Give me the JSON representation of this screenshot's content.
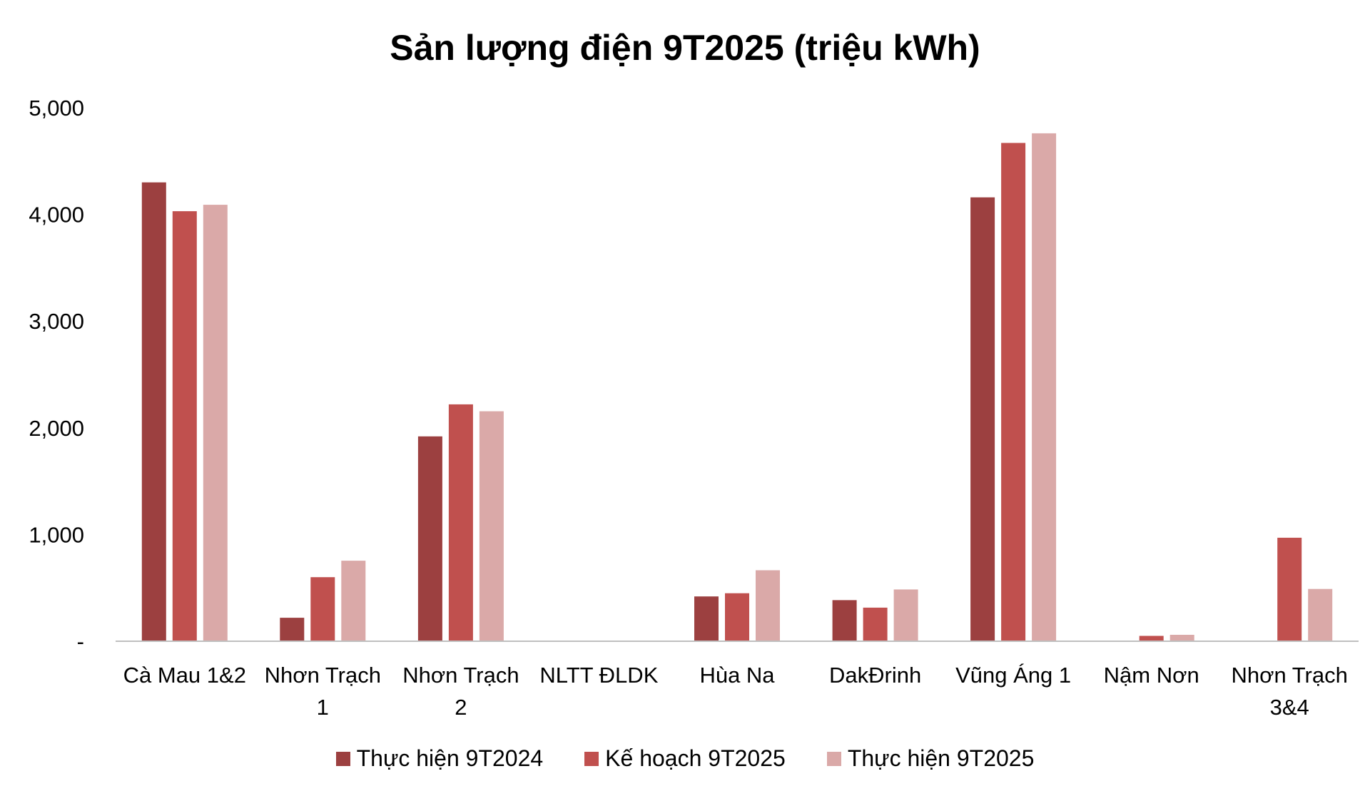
{
  "chart_data": {
    "type": "bar",
    "title": "Sản lượng điện 9T2025 (triệu kWh)",
    "xlabel": "",
    "ylabel": "",
    "ylim": [
      0,
      5000
    ],
    "yticks": [
      {
        "value": 0,
        "label": "-"
      },
      {
        "value": 1000,
        "label": "1,000"
      },
      {
        "value": 2000,
        "label": "2,000"
      },
      {
        "value": 3000,
        "label": "3,000"
      },
      {
        "value": 4000,
        "label": "4,000"
      },
      {
        "value": 5000,
        "label": "5,000"
      }
    ],
    "grid": false,
    "legend_position": "bottom",
    "categories": [
      [
        "Cà Mau 1&2"
      ],
      [
        "Nhơn Trạch",
        "1"
      ],
      [
        "Nhơn Trạch",
        "2"
      ],
      [
        "NLTT ĐLDK"
      ],
      [
        "Hùa Na"
      ],
      [
        "DakĐrinh"
      ],
      [
        "Vũng Áng 1"
      ],
      [
        "Nậm Nơn"
      ],
      [
        "Nhơn Trạch",
        "3&4"
      ]
    ],
    "series": [
      {
        "name": "Thực hiện 9T2024",
        "color": "#9c4040",
        "values": [
          4300,
          220,
          1920,
          0,
          420,
          385,
          4160,
          0,
          0
        ]
      },
      {
        "name": "Kế hoạch 9T2025",
        "color": "#c0504e",
        "values": [
          4030,
          600,
          2220,
          0,
          450,
          315,
          4670,
          50,
          970
        ]
      },
      {
        "name": "Thực hiện 9T2025",
        "color": "#daa9a8",
        "values": [
          4090,
          755,
          2155,
          0,
          665,
          485,
          4760,
          60,
          490
        ]
      }
    ]
  }
}
